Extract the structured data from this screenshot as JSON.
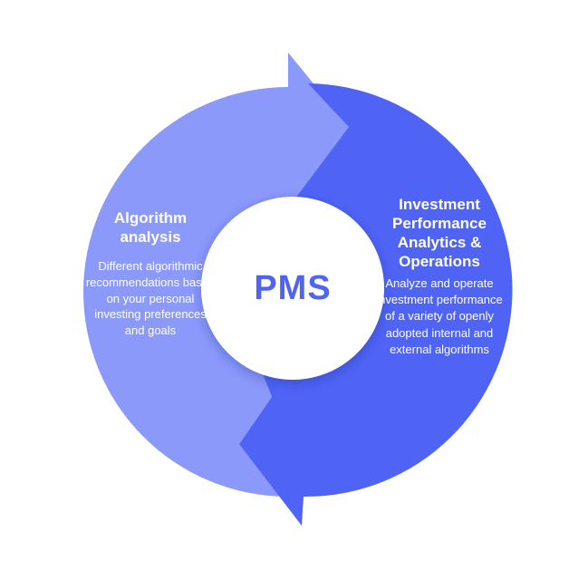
{
  "colors": {
    "left_segment": "#8b99fb",
    "right_segment": "#4f64f5",
    "center_circle": "#ffffff",
    "center_text": "#4f64f5",
    "panel_text": "#ffffff"
  },
  "center": {
    "label": "PMS"
  },
  "left_panel": {
    "title": "Algorithm analysis",
    "description": "Different algorithmic recommendations based on your personal investing preferences and goals"
  },
  "right_panel": {
    "title": "Investment Performance Analytics & Operations",
    "description": "Analyze and operate investment performance of a variety of openly adopted internal and external algorithms"
  }
}
